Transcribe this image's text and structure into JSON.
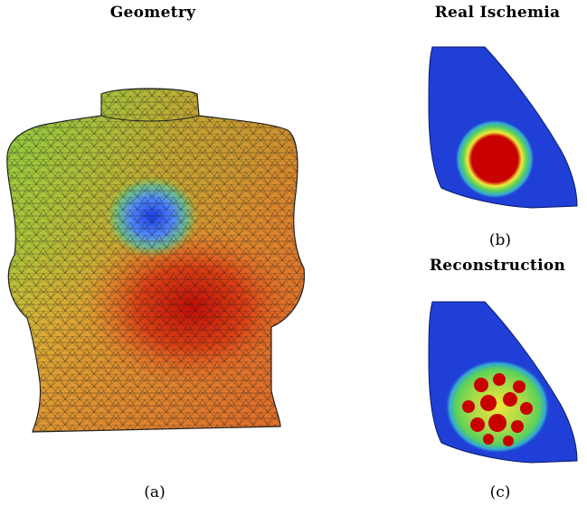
{
  "panels": {
    "a": {
      "title": "Geometry",
      "caption": "(a)"
    },
    "b": {
      "title": "Real Ischemia",
      "caption": "(b)"
    },
    "c": {
      "title": "Reconstruction",
      "caption": "(c)"
    }
  },
  "colors": {
    "background": "#ffffff",
    "healthy": "#1f3fd6",
    "ischemic_core": "#cc0000",
    "border_zone": "#f4e63a",
    "transition": "#4fd060",
    "torso_green": "#8ccc3e",
    "torso_blue_spot": "#2f5cff",
    "torso_red_spot": "#d62a10",
    "mesh_lines": "#1a1a1a"
  }
}
